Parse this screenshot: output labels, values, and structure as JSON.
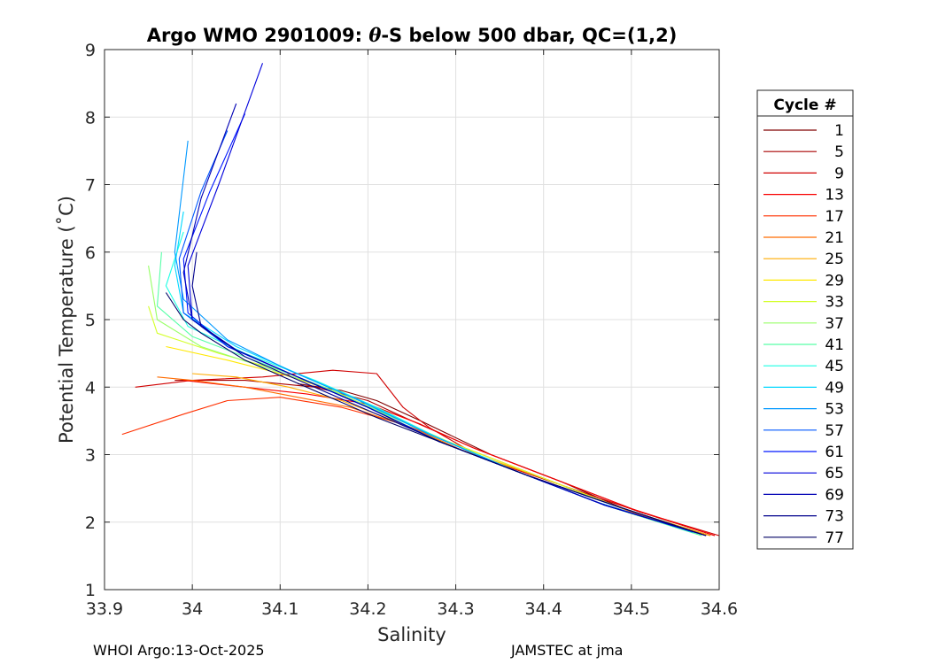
{
  "chart_data": {
    "type": "line",
    "title_prefix": "Argo WMO 2901009: ",
    "title_theta": "θ",
    "title_suffix": "-S below 500 dbar,  QC=(1,2)",
    "xlabel": "Salinity",
    "ylabel": "Potential Temperature (˚C)",
    "xlim": [
      33.9,
      34.6
    ],
    "ylim": [
      1,
      9
    ],
    "xticks": [
      33.9,
      34.0,
      34.1,
      34.2,
      34.3,
      34.4,
      34.5,
      34.6
    ],
    "xtick_labels": [
      "33.9",
      "34",
      "34.1",
      "34.2",
      "34.3",
      "34.4",
      "34.5",
      "34.6"
    ],
    "yticks": [
      1,
      2,
      3,
      4,
      5,
      6,
      7,
      8,
      9
    ],
    "ytick_labels": [
      "1",
      "2",
      "3",
      "4",
      "5",
      "6",
      "7",
      "8",
      "9"
    ],
    "grid": true,
    "legend_title": "Cycle #",
    "legend_position": "outside-right",
    "series": [
      {
        "name": "1",
        "color": "#800000",
        "salinity": [
          34.59,
          34.5,
          34.42,
          34.34,
          34.26,
          34.21,
          34.17,
          34.12
        ],
        "theta": [
          1.8,
          2.15,
          2.6,
          3.0,
          3.5,
          3.8,
          3.95,
          4.05
        ]
      },
      {
        "name": "5",
        "color": "#a80000",
        "salinity": [
          34.595,
          34.51,
          34.41,
          34.32,
          34.25,
          34.2,
          34.14,
          34.06,
          33.98
        ],
        "theta": [
          1.8,
          2.15,
          2.65,
          3.1,
          3.5,
          3.8,
          4.0,
          4.1,
          4.1
        ]
      },
      {
        "name": "9",
        "color": "#d00000",
        "salinity": [
          34.6,
          34.51,
          34.42,
          34.33,
          34.27,
          34.24,
          34.21,
          34.16,
          34.08,
          34.0,
          33.935
        ],
        "theta": [
          1.8,
          2.15,
          2.55,
          2.95,
          3.4,
          3.7,
          4.2,
          4.25,
          4.15,
          4.1,
          4.0
        ]
      },
      {
        "name": "13",
        "color": "#f80000",
        "salinity": [
          34.595,
          34.5,
          34.4,
          34.32,
          34.26,
          34.2,
          34.13,
          34.06,
          33.99
        ],
        "theta": [
          1.8,
          2.2,
          2.7,
          3.1,
          3.45,
          3.75,
          3.9,
          4.0,
          4.1
        ]
      },
      {
        "name": "17",
        "color": "#ff3000",
        "salinity": [
          34.59,
          34.5,
          34.4,
          34.31,
          34.24,
          34.17,
          34.1,
          34.04,
          33.99,
          33.92
        ],
        "theta": [
          1.8,
          2.15,
          2.65,
          3.1,
          3.45,
          3.7,
          3.85,
          3.8,
          3.6,
          3.3
        ]
      },
      {
        "name": "21",
        "color": "#ff6c00",
        "salinity": [
          34.585,
          34.49,
          34.4,
          34.31,
          34.25,
          34.18,
          34.12,
          34.06,
          34.0,
          33.96
        ],
        "theta": [
          1.8,
          2.2,
          2.65,
          3.05,
          3.4,
          3.7,
          3.85,
          4.0,
          4.1,
          4.15
        ]
      },
      {
        "name": "25",
        "color": "#ffac00",
        "salinity": [
          34.59,
          34.49,
          34.39,
          34.3,
          34.23,
          34.17,
          34.11,
          34.05,
          34.0
        ],
        "theta": [
          1.8,
          2.2,
          2.7,
          3.1,
          3.5,
          3.8,
          4.0,
          4.15,
          4.2
        ]
      },
      {
        "name": "29",
        "color": "#ffe800",
        "salinity": [
          34.585,
          34.48,
          34.38,
          34.29,
          34.22,
          34.16,
          34.1,
          34.04,
          33.97
        ],
        "theta": [
          1.8,
          2.25,
          2.75,
          3.2,
          3.6,
          3.95,
          4.2,
          4.4,
          4.6
        ]
      },
      {
        "name": "33",
        "color": "#d4ff2c",
        "salinity": [
          34.585,
          34.48,
          34.38,
          34.29,
          34.22,
          34.16,
          34.1,
          34.03,
          33.96,
          33.95
        ],
        "theta": [
          1.8,
          2.25,
          2.75,
          3.2,
          3.6,
          3.95,
          4.25,
          4.5,
          4.8,
          5.2
        ]
      },
      {
        "name": "37",
        "color": "#98ff68",
        "salinity": [
          34.58,
          34.47,
          34.37,
          34.29,
          34.22,
          34.15,
          34.08,
          34.01,
          33.96,
          33.95
        ],
        "theta": [
          1.8,
          2.25,
          2.75,
          3.2,
          3.6,
          4.0,
          4.3,
          4.6,
          5.0,
          5.8
        ]
      },
      {
        "name": "41",
        "color": "#58ffa8",
        "salinity": [
          34.58,
          34.47,
          34.37,
          34.28,
          34.21,
          34.14,
          34.07,
          34.0,
          33.96,
          33.965
        ],
        "theta": [
          1.8,
          2.25,
          2.75,
          3.2,
          3.65,
          4.05,
          4.4,
          4.75,
          5.2,
          6.0
        ]
      },
      {
        "name": "45",
        "color": "#1cffe4",
        "salinity": [
          34.58,
          34.47,
          34.37,
          34.28,
          34.21,
          34.14,
          34.06,
          33.995,
          33.97,
          33.99
        ],
        "theta": [
          1.82,
          2.25,
          2.75,
          3.25,
          3.7,
          4.1,
          4.5,
          4.9,
          5.5,
          6.3
        ]
      },
      {
        "name": "49",
        "color": "#00d8ff",
        "salinity": [
          34.57,
          34.46,
          34.36,
          34.27,
          34.2,
          34.12,
          34.05,
          33.99,
          33.98,
          33.99
        ],
        "theta": [
          1.85,
          2.3,
          2.8,
          3.3,
          3.75,
          4.2,
          4.6,
          5.1,
          5.8,
          6.6
        ]
      },
      {
        "name": "53",
        "color": "#0098ff",
        "salinity": [
          34.57,
          34.46,
          34.36,
          34.27,
          34.19,
          34.11,
          34.04,
          33.99,
          33.98,
          33.995
        ],
        "theta": [
          1.85,
          2.3,
          2.8,
          3.3,
          3.8,
          4.25,
          4.7,
          5.3,
          6.0,
          7.65
        ]
      },
      {
        "name": "57",
        "color": "#0058ff",
        "salinity": [
          34.58,
          34.47,
          34.37,
          34.28,
          34.2,
          34.12,
          34.04,
          33.99,
          33.985,
          34.01,
          34.04
        ],
        "theta": [
          1.82,
          2.25,
          2.75,
          3.2,
          3.7,
          4.15,
          4.6,
          5.1,
          5.9,
          6.9,
          7.8
        ]
      },
      {
        "name": "61",
        "color": "#0018ff",
        "salinity": [
          34.58,
          34.47,
          34.37,
          34.28,
          34.2,
          34.12,
          34.04,
          33.995,
          33.99,
          34.02,
          34.06
        ],
        "theta": [
          1.82,
          2.25,
          2.75,
          3.2,
          3.7,
          4.15,
          4.6,
          5.1,
          5.9,
          6.9,
          8.05
        ]
      },
      {
        "name": "65",
        "color": "#0000dc",
        "salinity": [
          34.58,
          34.47,
          34.37,
          34.28,
          34.2,
          34.12,
          34.05,
          34.0,
          33.995,
          34.03,
          34.08
        ],
        "theta": [
          1.82,
          2.25,
          2.75,
          3.2,
          3.7,
          4.15,
          4.55,
          5.0,
          5.8,
          7.0,
          8.8
        ]
      },
      {
        "name": "69",
        "color": "#0000b4",
        "salinity": [
          34.585,
          34.47,
          34.37,
          34.28,
          34.2,
          34.12,
          34.05,
          34.0,
          33.99,
          34.01,
          34.05
        ],
        "theta": [
          1.8,
          2.25,
          2.75,
          3.2,
          3.7,
          4.15,
          4.55,
          5.0,
          5.7,
          6.8,
          8.2
        ]
      },
      {
        "name": "73",
        "color": "#00008c",
        "salinity": [
          34.585,
          34.48,
          34.38,
          34.29,
          34.21,
          34.13,
          34.06,
          34.01,
          34.0,
          34.005
        ],
        "theta": [
          1.8,
          2.25,
          2.7,
          3.15,
          3.6,
          4.05,
          4.45,
          4.9,
          5.5,
          6.0
        ]
      },
      {
        "name": "77",
        "color": "#000064",
        "salinity": [
          34.585,
          34.48,
          34.38,
          34.29,
          34.21,
          34.13,
          34.06,
          34.01,
          33.99,
          33.97
        ],
        "theta": [
          1.8,
          2.25,
          2.7,
          3.15,
          3.55,
          4.0,
          4.4,
          4.8,
          5.0,
          5.4
        ]
      }
    ]
  },
  "footer": {
    "left": "WHOI Argo:13-Oct-2025",
    "right": "JAMSTEC at jma"
  }
}
